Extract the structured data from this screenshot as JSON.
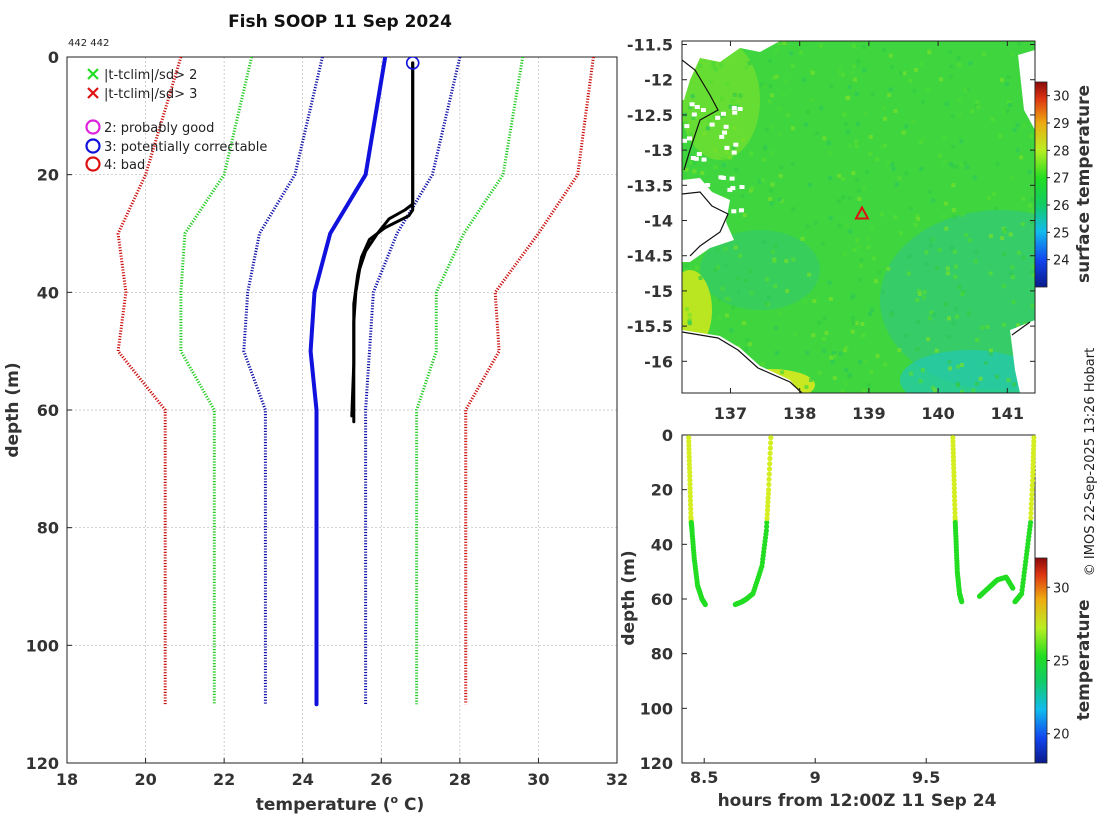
{
  "chart_data": [
    {
      "type": "line",
      "title": "Fish SOOP 11 Sep 2024",
      "subtitle": "442 442",
      "xlabel": "temperature (",
      "xlabel_sup": "o",
      "xlabel_end": " C)",
      "ylabel": "depth (m)",
      "xlim": [
        18,
        32
      ],
      "ylim": [
        0,
        120
      ],
      "xticks": [
        18,
        20,
        22,
        24,
        26,
        28,
        30,
        32
      ],
      "yticks": [
        0,
        20,
        40,
        60,
        80,
        100,
        120
      ],
      "legend": [
        {
          "marker": "x",
          "color": "#22dd22",
          "label": "|t-tclim|/sd> 2"
        },
        {
          "marker": "x",
          "color": "#dd1111",
          "label": "|t-tclim|/sd> 3"
        },
        {
          "marker": "o",
          "color": "#dd22dd",
          "label": "2: probably good"
        },
        {
          "marker": "o",
          "color": "#1111dd",
          "label": "3: potentially correctable"
        },
        {
          "marker": "o",
          "color": "#dd1111",
          "label": "4: bad"
        }
      ],
      "climatology_depth": [
        0,
        20,
        30,
        40,
        50,
        60,
        110
      ],
      "series": [
        {
          "name": "clim",
          "style": "solid",
          "color": "#1111dd",
          "x": [
            26.1,
            25.6,
            24.7,
            24.3,
            24.2,
            24.35,
            24.35
          ],
          "y": [
            0,
            20,
            30,
            40,
            50,
            60,
            110
          ]
        },
        {
          "name": "clim-2sd",
          "style": "dotted",
          "color": "#1111aa",
          "x": [
            24.5,
            23.8,
            22.9,
            22.6,
            22.5,
            23.05,
            23.05
          ],
          "y": [
            0,
            20,
            30,
            40,
            50,
            60,
            110
          ]
        },
        {
          "name": "clim+2sd",
          "style": "dotted",
          "color": "#1111aa",
          "x": [
            28.0,
            27.3,
            26.4,
            25.8,
            25.7,
            25.6,
            25.6
          ],
          "y": [
            0,
            20,
            30,
            40,
            50,
            60,
            110
          ]
        },
        {
          "name": "clim-4sd",
          "style": "dotted",
          "color": "#22cc22",
          "x": [
            22.7,
            22.0,
            21.0,
            20.9,
            20.9,
            21.75,
            21.75
          ],
          "y": [
            0,
            20,
            30,
            40,
            50,
            60,
            110
          ]
        },
        {
          "name": "clim+4sd",
          "style": "dotted",
          "color": "#22cc22",
          "x": [
            29.6,
            29.1,
            28.1,
            27.4,
            27.4,
            26.9,
            26.9
          ],
          "y": [
            0,
            20,
            30,
            40,
            50,
            60,
            110
          ]
        },
        {
          "name": "clim-6sd",
          "style": "dotted",
          "color": "#cc1111",
          "x": [
            20.9,
            20.0,
            19.3,
            19.5,
            19.3,
            20.5,
            20.5
          ],
          "y": [
            0,
            20,
            30,
            40,
            50,
            60,
            110
          ]
        },
        {
          "name": "clim+6sd",
          "style": "dotted",
          "color": "#cc1111",
          "x": [
            31.4,
            31.0,
            30.0,
            28.9,
            29.0,
            28.15,
            28.15
          ],
          "y": [
            0,
            20,
            30,
            40,
            50,
            60,
            110
          ]
        },
        {
          "name": "profile 1",
          "style": "solid",
          "color": "#000000",
          "x": [
            26.8,
            26.8,
            26.8,
            26.8,
            26.8,
            26.7,
            26.1,
            25.7,
            25.5,
            25.4,
            25.3,
            25.3,
            25.3,
            25.3
          ],
          "y": [
            1,
            10,
            20,
            25,
            26,
            27,
            29,
            31,
            34,
            37,
            42,
            50,
            58,
            62
          ]
        },
        {
          "name": "profile 2",
          "style": "solid",
          "color": "#000000",
          "x": [
            26.8,
            26.8,
            26.8,
            26.8,
            26.6,
            26.2,
            25.9,
            25.6,
            25.45,
            25.35,
            25.3,
            25.3,
            25.25
          ],
          "y": [
            1,
            10,
            20,
            25,
            26,
            27.5,
            30,
            33,
            36,
            40,
            45,
            52,
            61
          ]
        }
      ],
      "flag_marker": {
        "x": 26.8,
        "y": 1,
        "color": "#1111dd",
        "label": "3"
      }
    },
    {
      "type": "heatmap",
      "title": "",
      "xlim": [
        136.3,
        141.4
      ],
      "ylim": [
        -16.45,
        -11.45
      ],
      "xticks": [
        137,
        138,
        139,
        140,
        141
      ],
      "yticks": [
        -11.5,
        -12,
        -12.5,
        -13,
        -13.5,
        -14,
        -14.5,
        -15,
        -15.5,
        -16
      ],
      "colorbar_label": "surface temperature",
      "colorbar_range": [
        23,
        30.5
      ],
      "colorbar_ticks": [
        24,
        25,
        26,
        27,
        28,
        29,
        30
      ],
      "position_marker": {
        "lon": 138.9,
        "lat": -13.9,
        "color": "#dd1111"
      }
    },
    {
      "type": "scatter",
      "xlabel": "hours from 12:00Z 11 Sep 24",
      "ylabel": "depth (m)",
      "xlim": [
        8.4,
        9.99
      ],
      "ylim": [
        0,
        120
      ],
      "xticks": [
        8.5,
        9,
        9.5
      ],
      "yticks": [
        0,
        20,
        40,
        60,
        80,
        100,
        120
      ],
      "colorbar_label": "temperature",
      "colorbar_range": [
        18,
        32
      ],
      "colorbar_ticks": [
        20,
        25,
        30
      ],
      "casts": [
        {
          "name": "cast 1 descent",
          "x": [
            8.43,
            8.435,
            8.44,
            8.445,
            8.455,
            8.47,
            8.49,
            8.505
          ],
          "y": [
            1,
            15,
            30,
            35,
            45,
            55,
            60,
            62
          ]
        },
        {
          "name": "cast 1 ascent",
          "x": [
            8.64,
            8.67,
            8.69,
            8.72,
            8.76,
            8.78,
            8.79,
            8.8
          ],
          "y": [
            62,
            61,
            60,
            58,
            48,
            35,
            20,
            1
          ]
        },
        {
          "name": "cast 2 descent",
          "x": [
            9.62,
            9.625,
            9.63,
            9.635,
            9.64,
            9.65,
            9.66
          ],
          "y": [
            1,
            15,
            30,
            40,
            50,
            58,
            61
          ]
        },
        {
          "name": "cast 2 mid",
          "x": [
            9.74,
            9.78,
            9.82,
            9.86,
            9.89
          ],
          "y": [
            59,
            56,
            53,
            52,
            56
          ]
        },
        {
          "name": "cast 2 ascent",
          "x": [
            9.9,
            9.91,
            9.93,
            9.95,
            9.97,
            9.98,
            9.985
          ],
          "y": [
            61,
            60,
            58,
            45,
            32,
            15,
            1
          ]
        }
      ],
      "surface_color": "#d4ee22",
      "deep_color": "#22dd22"
    }
  ],
  "footer": "© IMOS 22-Sep-2025 13:26 Hobart"
}
